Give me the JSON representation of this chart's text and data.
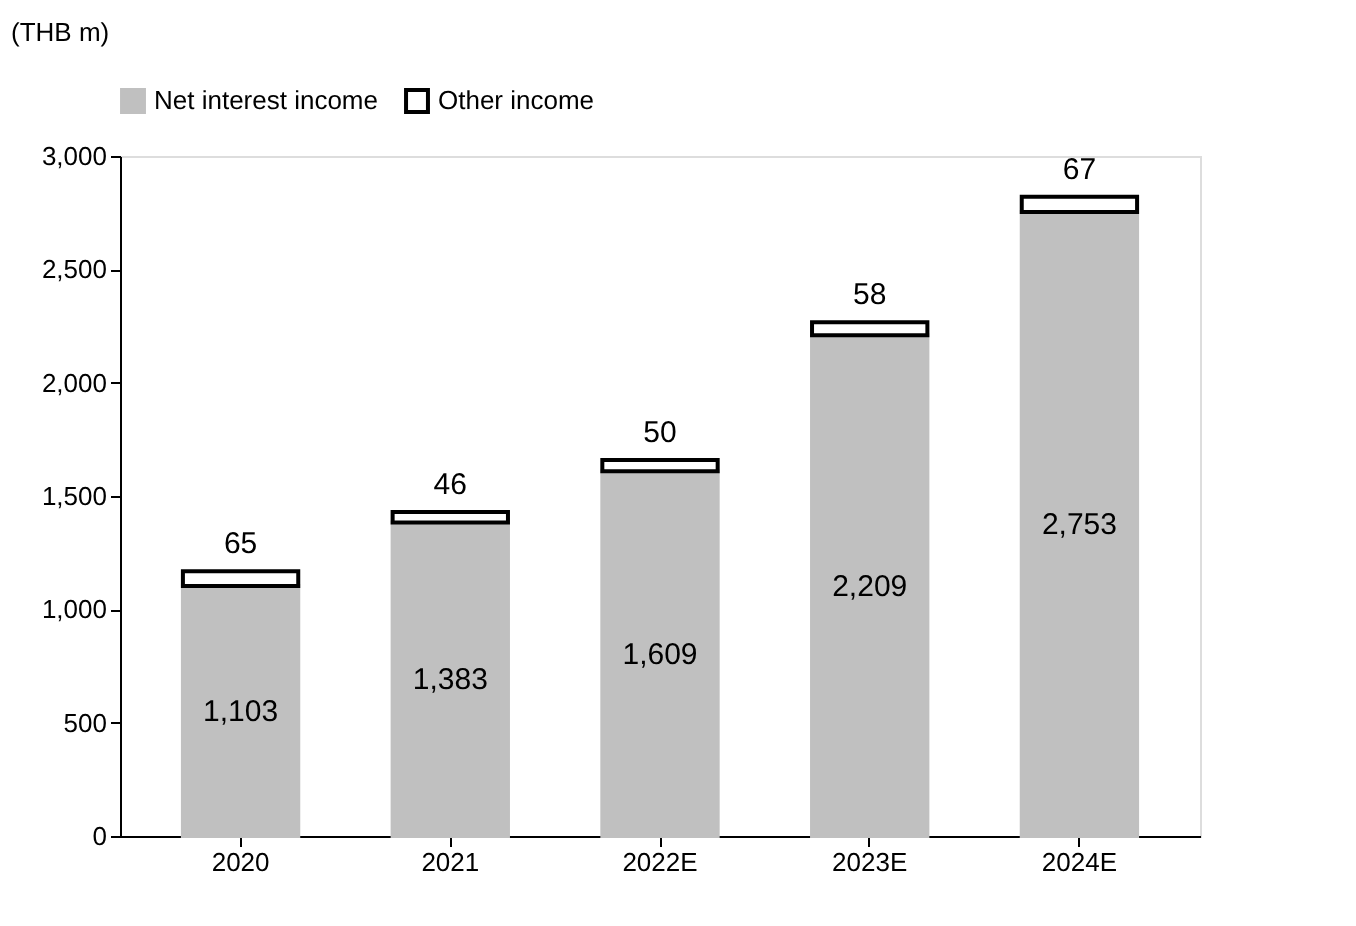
{
  "chart_data": {
    "type": "bar",
    "stacked": true,
    "ylabel": "(THB m)",
    "categories": [
      "2020",
      "2021",
      "2022E",
      "2023E",
      "2024E"
    ],
    "series": [
      {
        "name": "Net interest income",
        "color": "#c0c0c0",
        "values": [
          1103,
          1383,
          1609,
          2209,
          2753
        ],
        "value_labels": [
          "1,103",
          "1,383",
          "1,609",
          "2,209",
          "2,753"
        ]
      },
      {
        "name": "Other income",
        "color": "#ffffff",
        "values": [
          65,
          46,
          50,
          58,
          67
        ],
        "value_labels": [
          "65",
          "46",
          "50",
          "58",
          "67"
        ]
      }
    ],
    "ylim": [
      0,
      3000
    ],
    "yticks": [
      0,
      {
        "value": 500,
        "label": "500"
      },
      {
        "value": 1000,
        "label": "1,000"
      },
      {
        "value": 1500,
        "label": "1,500"
      },
      {
        "value": 2000,
        "label": "2,000"
      },
      {
        "value": 2500,
        "label": "2,500"
      },
      {
        "value": 3000,
        "label": "3,000"
      }
    ],
    "legend": "top",
    "grid": false
  }
}
